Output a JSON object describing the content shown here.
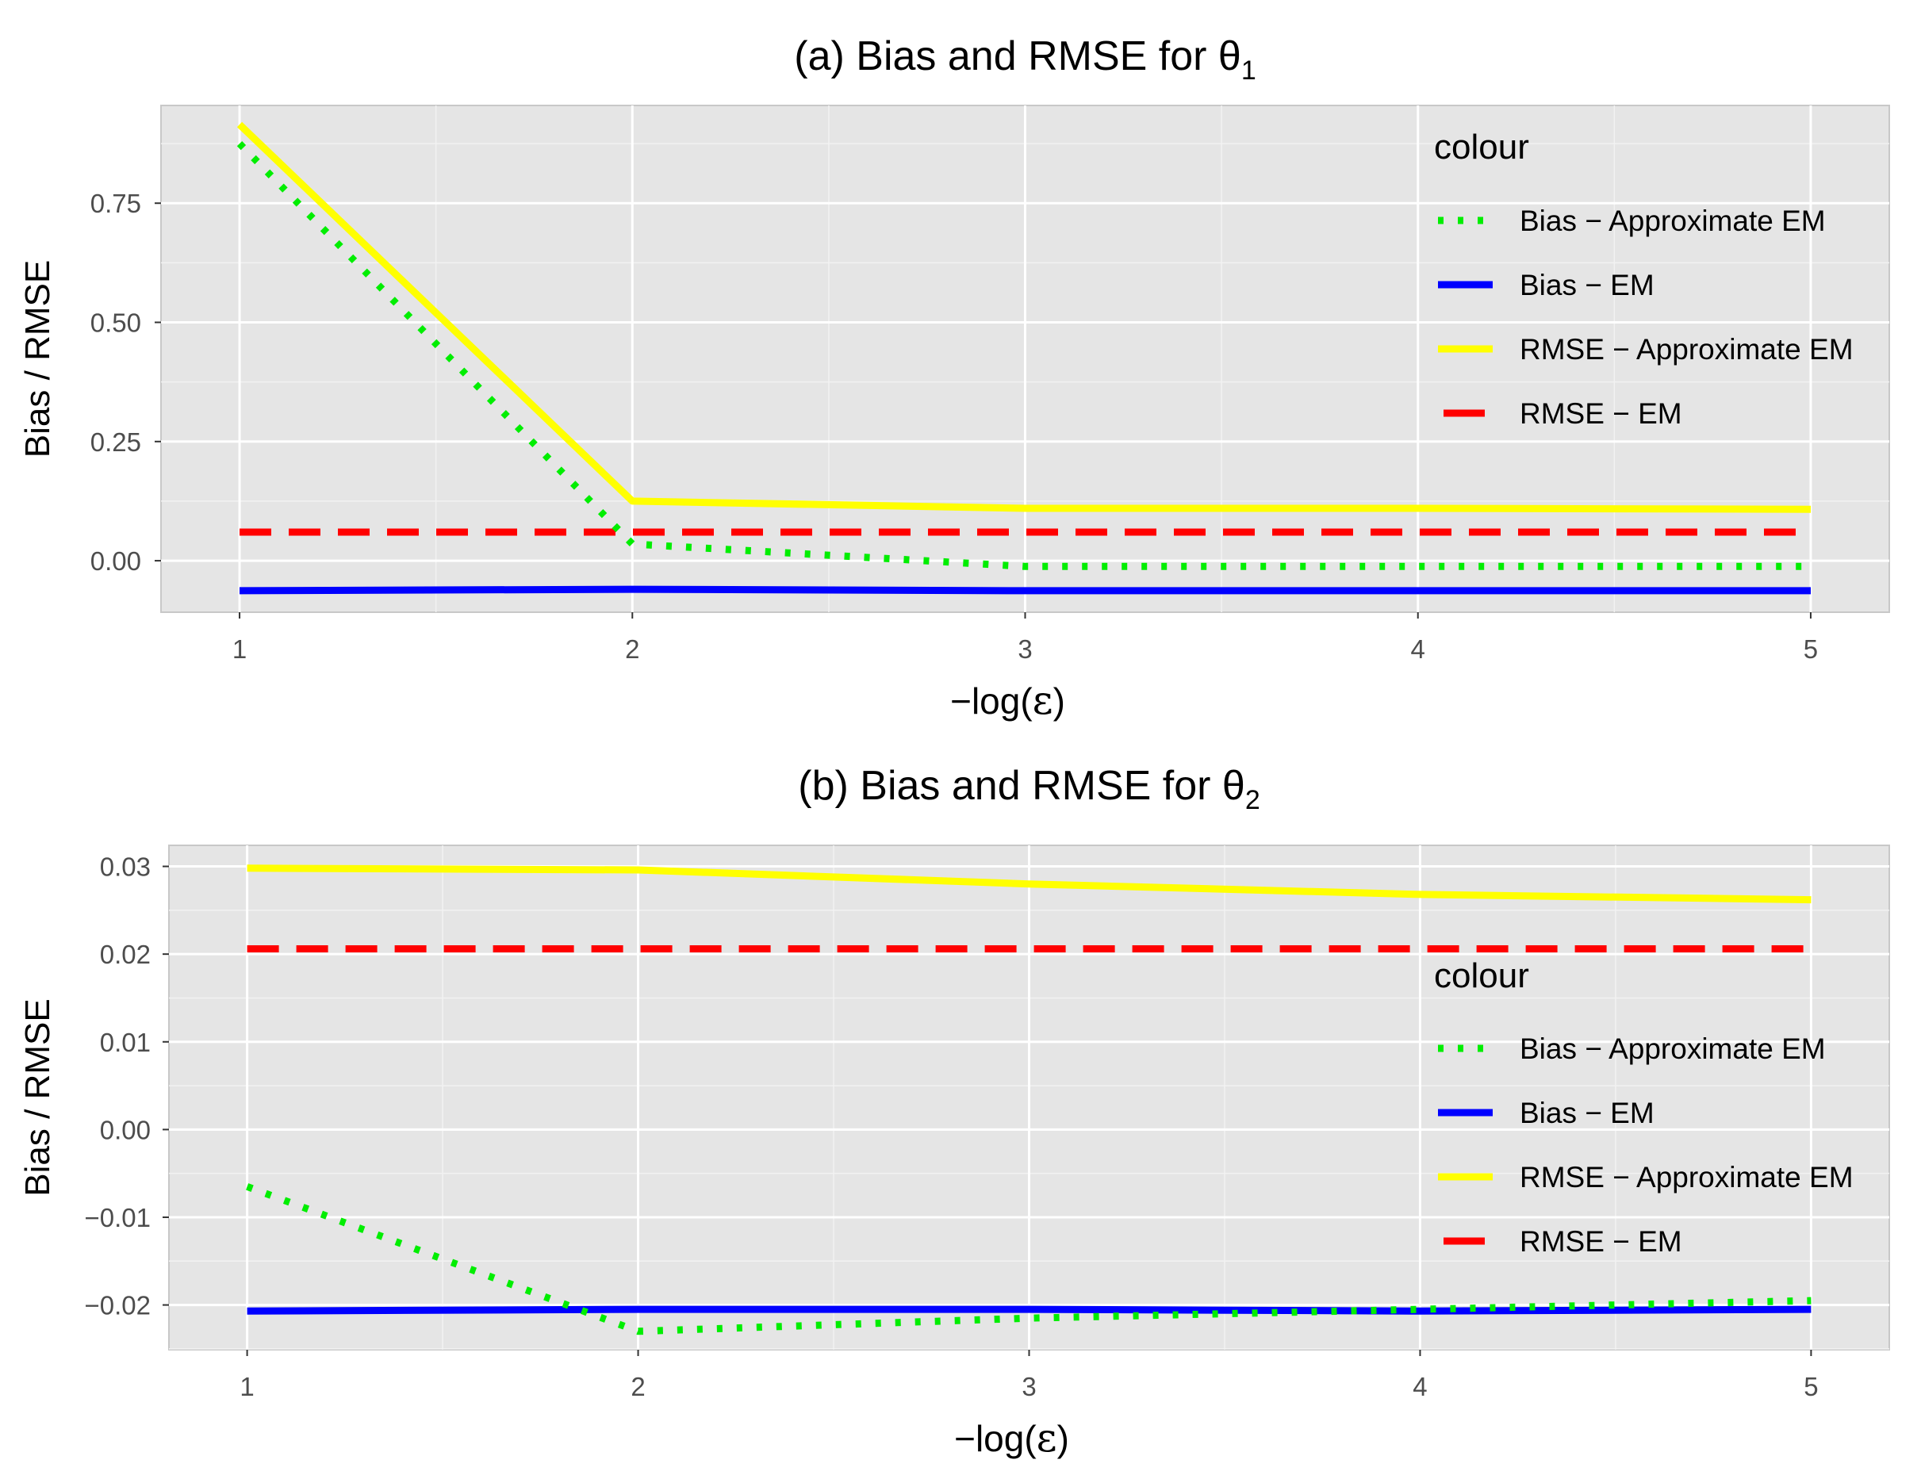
{
  "chart_data": [
    {
      "type": "line",
      "title": "(a) Bias and RMSE for θ",
      "title_subscript": "1",
      "xlabel_prefix": "−log(",
      "xlabel_symbol": "ε",
      "xlabel_suffix": ")",
      "ylabel": "Bias / RMSE",
      "x": [
        1,
        2,
        3,
        4,
        5
      ],
      "xlim": [
        0.8,
        5.2
      ],
      "ylim": [
        -0.108,
        0.955
      ],
      "xticks": [
        1,
        2,
        3,
        4,
        5
      ],
      "yticks": [
        0,
        0.25,
        0.5,
        0.75
      ],
      "ytick_labels": [
        "0.00",
        "0.25",
        "0.50",
        "0.75"
      ],
      "grid": true,
      "legend_position": "top-right",
      "legend_title": "colour",
      "series": [
        {
          "name": "Bias − Approximate EM",
          "color": "#00ee00",
          "style": "dotted",
          "values": [
            0.875,
            0.035,
            -0.012,
            -0.012,
            -0.012
          ]
        },
        {
          "name": "Bias − EM",
          "color": "#0000ff",
          "style": "solid",
          "values": [
            -0.063,
            -0.06,
            -0.063,
            -0.063,
            -0.063
          ]
        },
        {
          "name": "RMSE − Approximate EM",
          "color": "#ffff00",
          "style": "solid",
          "values": [
            0.915,
            0.125,
            0.11,
            0.11,
            0.108
          ]
        },
        {
          "name": "RMSE − EM",
          "color": "#ff0000",
          "style": "dashed",
          "values": [
            0.06,
            0.06,
            0.06,
            0.06,
            0.06
          ]
        }
      ]
    },
    {
      "type": "line",
      "title": "(b) Bias and RMSE for θ",
      "title_subscript": "2",
      "xlabel_prefix": "−log(",
      "xlabel_symbol": "ε",
      "xlabel_suffix": ")",
      "ylabel": "Bias / RMSE",
      "x": [
        1,
        2,
        3,
        4,
        5
      ],
      "xlim": [
        0.8,
        5.2
      ],
      "ylim": [
        -0.0251,
        0.0324
      ],
      "xticks": [
        1,
        2,
        3,
        4,
        5
      ],
      "yticks": [
        -0.02,
        -0.01,
        0,
        0.01,
        0.02,
        0.03
      ],
      "ytick_labels": [
        "−0.02",
        "−0.01",
        "0.00",
        "0.01",
        "0.02",
        "0.03"
      ],
      "grid": true,
      "legend_position": "right",
      "legend_title": "colour",
      "series": [
        {
          "name": "Bias − Approximate EM",
          "color": "#00ee00",
          "style": "dotted",
          "values": [
            -0.0065,
            -0.023,
            -0.0215,
            -0.0205,
            -0.0195
          ]
        },
        {
          "name": "Bias − EM",
          "color": "#0000ff",
          "style": "solid",
          "values": [
            -0.0207,
            -0.0205,
            -0.0205,
            -0.0207,
            -0.0205
          ]
        },
        {
          "name": "RMSE − Approximate EM",
          "color": "#ffff00",
          "style": "solid",
          "values": [
            0.0298,
            0.0296,
            0.028,
            0.0268,
            0.0262
          ]
        },
        {
          "name": "RMSE − EM",
          "color": "#ff0000",
          "style": "dashed",
          "values": [
            0.0206,
            0.0206,
            0.0206,
            0.0206,
            0.0206
          ]
        }
      ]
    }
  ]
}
